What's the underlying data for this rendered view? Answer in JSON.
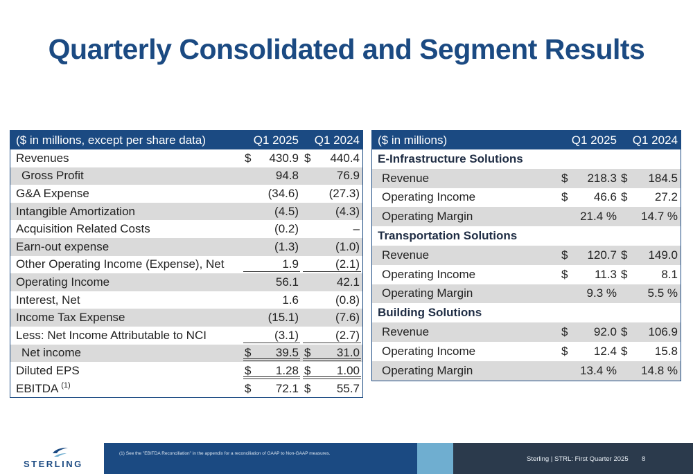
{
  "title": "Quarterly Consolidated and Segment Results",
  "left_table": {
    "header": {
      "label": "($ in millions, except per share data)",
      "col1": "Q1 2025",
      "col2": "Q1 2024"
    },
    "rows": [
      {
        "label": "Revenues",
        "v1": "430.9",
        "v2": "440.4",
        "dollar": true
      },
      {
        "label": "Gross Profit",
        "v1": "94.8",
        "v2": "76.9"
      },
      {
        "label": "G&A Expense",
        "v1": "(34.6)",
        "v2": "(27.3)"
      },
      {
        "label": "Intangible Amortization",
        "v1": "(4.5)",
        "v2": "(4.3)"
      },
      {
        "label": "Acquisition Related Costs",
        "v1": "(0.2)",
        "v2": "–"
      },
      {
        "label": "Earn-out expense",
        "v1": "(1.3)",
        "v2": "(1.0)"
      },
      {
        "label": "Other Operating Income (Expense), Net",
        "v1": "1.9",
        "v2": "(2.1)"
      },
      {
        "label": "Operating Income",
        "v1": "56.1",
        "v2": "42.1"
      },
      {
        "label": "Interest, Net",
        "v1": "1.6",
        "v2": "(0.8)"
      },
      {
        "label": "Income Tax Expense",
        "v1": "(15.1)",
        "v2": "(7.6)"
      },
      {
        "label": "Less: Net Income Attributable to NCI",
        "v1": "(3.1)",
        "v2": "(2.7)"
      },
      {
        "label": "Net income",
        "v1": "39.5",
        "v2": "31.0",
        "dollar": true
      },
      {
        "label": "Diluted EPS",
        "v1": "1.28",
        "v2": "1.00",
        "dollar": true
      },
      {
        "label": "EBITDA",
        "sup": "(1)",
        "v1": "72.1",
        "v2": "55.7",
        "dollar": true
      }
    ],
    "dollar_sign": "$"
  },
  "right_table": {
    "header": {
      "label": "($ in millions)",
      "col1": "Q1 2025",
      "col2": "Q1 2024"
    },
    "sections": [
      {
        "name": "E-Infrastructure Solutions",
        "revenue": {
          "label": "Revenue",
          "v1": "218.3",
          "v2": "184.5"
        },
        "op_income": {
          "label": "Operating Income",
          "v1": "46.6",
          "v2": "27.2"
        },
        "op_margin": {
          "label": "Operating Margin",
          "v1": "21.4 %",
          "v2": "14.7 %"
        }
      },
      {
        "name": "Transportation Solutions",
        "revenue": {
          "label": "Revenue",
          "v1": "120.7",
          "v2": "149.0"
        },
        "op_income": {
          "label": "Operating Income",
          "v1": "11.3",
          "v2": "8.1"
        },
        "op_margin": {
          "label": "Operating Margin",
          "v1": "9.3 %",
          "v2": "5.5 %"
        }
      },
      {
        "name": "Building Solutions",
        "revenue": {
          "label": "Revenue",
          "v1": "92.0",
          "v2": "106.9"
        },
        "op_income": {
          "label": "Operating Income",
          "v1": "12.4",
          "v2": "15.8"
        },
        "op_margin": {
          "label": "Operating Margin",
          "v1": "13.4 %",
          "v2": "14.8 %"
        }
      }
    ]
  },
  "footer": {
    "logo_text": "STERLING",
    "footnote": "(1)  See the \"EBITDA Reconciliation\" in the appendix for a reconciliation of GAAP to Non-GAAP measures.",
    "company": "Sterling | STRL:  First Quarter  2025",
    "page": "8"
  },
  "colors": {
    "brand_blue": "#1b4a82",
    "shade": "#dadada",
    "teal": "#6faed0",
    "dark": "#2b3a4c"
  }
}
